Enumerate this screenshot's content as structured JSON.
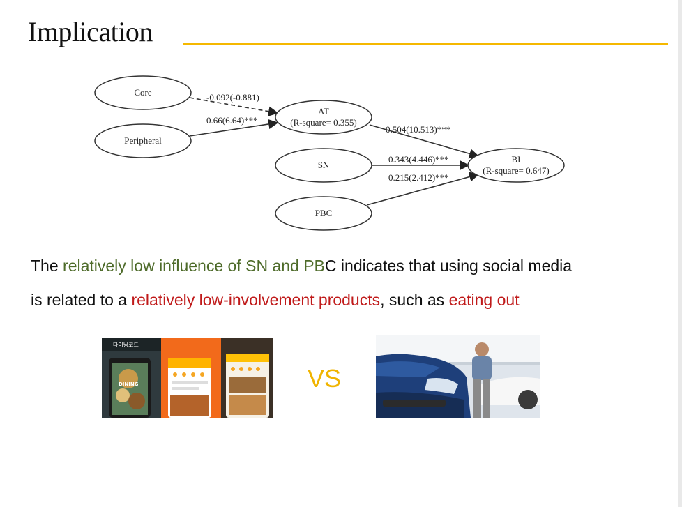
{
  "slide": {
    "title": "Implication",
    "accent_color": "#f5b800"
  },
  "diagram": {
    "nodes": {
      "core": "Core",
      "peripheral": "Peripheral",
      "at_name": "AT",
      "at_r2": "(R-square= 0.355)",
      "sn": "SN",
      "pbc": "PBC",
      "bi_name": "BI",
      "bi_r2": "(R-square= 0.647)"
    },
    "edges": {
      "core_at": "-0.092(-0.881)",
      "peripheral_at": "0.66(6.64)***",
      "at_bi": "0.504(10.513)***",
      "sn_bi": "0.343(4.446)***",
      "pbc_bi": "0.215(2.412)***"
    }
  },
  "text": {
    "line1_a": "The ",
    "line1_b": "relatively low influence of SN and PB",
    "line1_c": "C",
    "line1_d": " indicates that using social media",
    "line2_a": "is related to a ",
    "line2_b": "relatively low-involvement products",
    "line2_c": ", such as ",
    "line2_d": "eating out",
    "highlight_green": "#4e6b2a",
    "highlight_red": "#c01a1a"
  },
  "comparison": {
    "vs": "VS",
    "left_image_text": {
      "brand": "다이닝코드",
      "card": "DINING"
    }
  }
}
